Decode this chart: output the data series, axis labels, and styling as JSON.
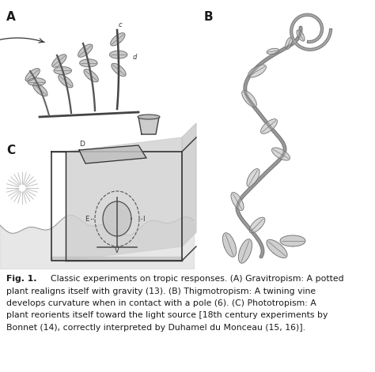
{
  "label_A": "A",
  "label_B": "B",
  "label_C": "C",
  "bg_color": "#ffffff",
  "text_color": "#1a1a1a",
  "sketch_color": "#555555",
  "fig_label_fontsize": 11,
  "caption_fontsize": 7.8,
  "caption_lines": [
    "Classic experiments on tropic responses. (A) Gravitropism: A potted",
    "plant realigns itself with gravity (13). (B) Thigmotropism: A twining vine",
    "develops curvature when in contact with a pole (6). (C) Phototropism: A",
    "plant reorients itself toward the light source [18th century experiments by",
    "Bonnet (14), correctly interpreted by Duhamel du Monceau (15, 16)]."
  ],
  "fig_bold": "Fig. 1.",
  "fig_caption_rest": "    Classic experiments on tropic responses. (A) Gravitropism: A potted"
}
